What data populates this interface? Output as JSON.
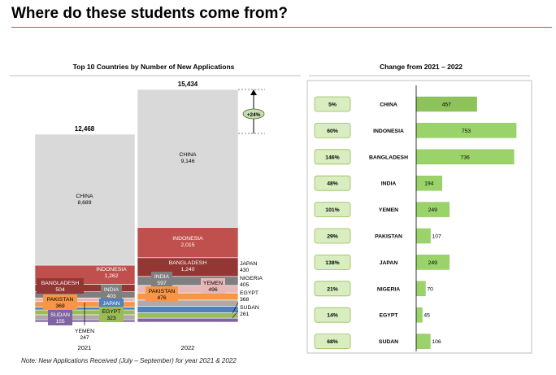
{
  "page": {
    "title": "Where do these students come from?",
    "footnote": "Note: New Applications Received (July – September) for year 2021 & 2022"
  },
  "colors": {
    "title_rule": "#c0504d",
    "china": "#d9d9d9",
    "indonesia": "#c0504d",
    "bangladesh": "#943634",
    "india": "#7f7f7f",
    "yemen": "#e6b8b7",
    "pakistan": "#f79646",
    "japan": "#4f81bd",
    "egypt": "#9bbb59",
    "nigeria": "#b0a9a9",
    "sudan": "#8064a2",
    "change_bar": "#9bd36b",
    "change_bar_dark": "#8dc35a",
    "pct_box": "#d8edc0",
    "pct_box_border": "#9bbb59"
  },
  "chart_data": [
    {
      "type": "bar",
      "stacked": true,
      "title": "Top 10 Countries by Number of New Applications",
      "categories": [
        "2021",
        "2022"
      ],
      "totals": [
        12468,
        15434
      ],
      "growth_label": "+24%",
      "series": [
        {
          "name": "CHINA",
          "values": [
            8689,
            9146
          ]
        },
        {
          "name": "INDONESIA",
          "values": [
            1262,
            2015
          ]
        },
        {
          "name": "BANGLADESH",
          "values": [
            504,
            1240
          ]
        },
        {
          "name": "INDIA",
          "values": [
            403,
            597
          ]
        },
        {
          "name": "YEMEN",
          "values": [
            247,
            496
          ]
        },
        {
          "name": "PAKISTAN",
          "values": [
            369,
            476
          ]
        },
        {
          "name": "JAPAN",
          "values": [
            181,
            430
          ]
        },
        {
          "name": "EGYPT",
          "values": [
            323,
            368
          ]
        },
        {
          "name": "NIGERIA",
          "values": [
            335,
            405
          ]
        },
        {
          "name": "SUDAN",
          "values": [
            155,
            261
          ]
        }
      ],
      "labels_2021": [
        {
          "country": "CHINA",
          "value": "8,689"
        },
        {
          "country": "INDONESIA",
          "value": "1,262"
        },
        {
          "country": "BANGLADESH",
          "value": "504"
        },
        {
          "country": "INDIA",
          "value": "403"
        },
        {
          "country": "PAKISTAN",
          "value": "369"
        },
        {
          "country": "JAPAN",
          "value": ""
        },
        {
          "country": "EGYPT",
          "value": "323"
        },
        {
          "country": "SUDAN",
          "value": "155"
        },
        {
          "country": "YEMEN",
          "value": "247"
        }
      ],
      "labels_2022": [
        {
          "country": "CHINA",
          "value": "9,146"
        },
        {
          "country": "INDONESIA",
          "value": "2,015"
        },
        {
          "country": "BANGLADESH",
          "value": "1,240"
        },
        {
          "country": "INDIA",
          "value": "597"
        },
        {
          "country": "YEMEN",
          "value": "496"
        },
        {
          "country": "PAKISTAN",
          "value": "476"
        },
        {
          "country": "JAPAN",
          "value": "430"
        },
        {
          "country": "NIGERIA",
          "value": "405"
        },
        {
          "country": "EGYPT",
          "value": "368"
        },
        {
          "country": "SUDAN",
          "value": "261"
        }
      ],
      "total_labels": [
        "12,468",
        "15,434"
      ]
    },
    {
      "type": "bar",
      "orientation": "horizontal",
      "title": "Change from 2021 – 2022",
      "categories": [
        "CHINA",
        "INDONESIA",
        "BANGLADESH",
        "INDIA",
        "YEMEN",
        "PAKISTAN",
        "JAPAN",
        "NIGERIA",
        "EGYPT",
        "SUDAN"
      ],
      "values": [
        457,
        753,
        736,
        194,
        249,
        107,
        249,
        70,
        45,
        106
      ],
      "pct_change": [
        "5%",
        "60%",
        "146%",
        "48%",
        "101%",
        "29%",
        "138%",
        "21%",
        "14%",
        "68%"
      ]
    }
  ]
}
